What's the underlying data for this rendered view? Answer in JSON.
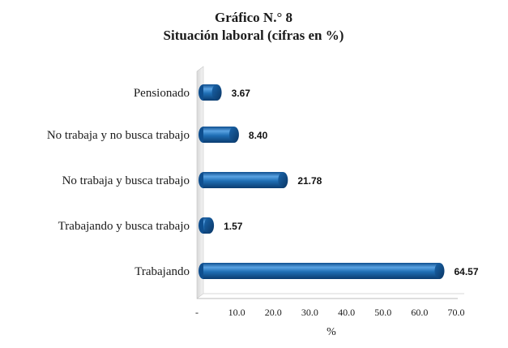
{
  "chart_data": {
    "type": "bar",
    "orientation": "horizontal",
    "title": "Gráfico N.° 8",
    "subtitle": "Situación laboral (cifras en %)",
    "xlabel": "%",
    "categories": [
      "Pensionado",
      "No trabaja y no busca trabajo",
      "No trabaja y busca trabajo",
      "Trabajando y busca trabajo",
      "Trabajando"
    ],
    "values": [
      3.67,
      8.4,
      21.78,
      1.57,
      64.57
    ],
    "data_labels": [
      "3.67",
      "8.40",
      "21.78",
      "1.57",
      "64.57"
    ],
    "xlim": [
      0,
      70
    ],
    "x_ticks": [
      "-",
      "10.0",
      "20.0",
      "30.0",
      "40.0",
      "50.0",
      "60.0",
      "70.0"
    ],
    "grid": false,
    "legend": "none",
    "bar_color": "#1f6fb5",
    "bar_highlight": "#7fb6e8",
    "bar_shadow": "#0d3f73"
  }
}
